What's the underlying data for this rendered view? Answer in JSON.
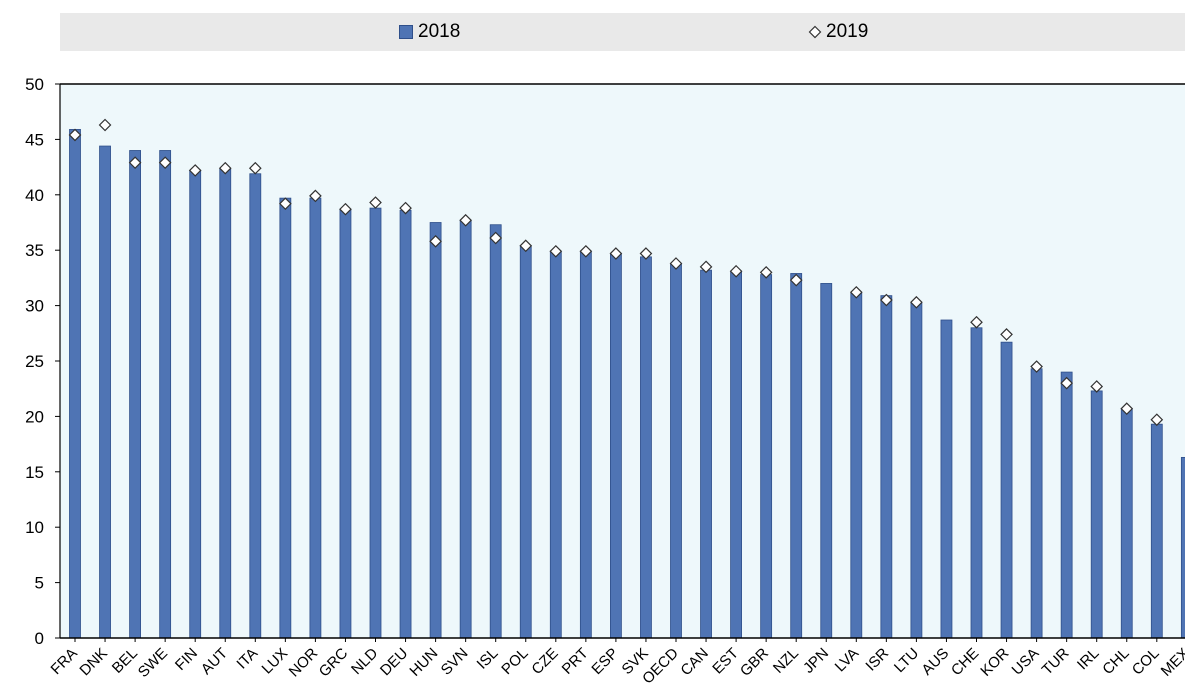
{
  "chart_data": {
    "type": "bar",
    "title": "",
    "xlabel": "",
    "ylabel": "",
    "ylim": [
      0,
      50
    ],
    "yticks": [
      "0",
      "5",
      "10",
      "15",
      "20",
      "25",
      "30",
      "35",
      "40",
      "45",
      "50"
    ],
    "legend_position": "top",
    "categories": [
      "FRA",
      "DNK",
      "BEL",
      "SWE",
      "FIN",
      "AUT",
      "ITA",
      "LUX",
      "NOR",
      "GRC",
      "NLD",
      "DEU",
      "HUN",
      "SVN",
      "ISL",
      "POL",
      "CZE",
      "PRT",
      "ESP",
      "SVK",
      "OECD",
      "CAN",
      "EST",
      "GBR",
      "NZL",
      "JPN",
      "LVA",
      "ISR",
      "LTU",
      "AUS",
      "CHE",
      "KOR",
      "USA",
      "TUR",
      "IRL",
      "CHL",
      "COL",
      "MEX"
    ],
    "series": [
      {
        "name": "2018",
        "mark": "bar",
        "color": "#4f74b4",
        "values": [
          45.9,
          44.4,
          44.0,
          44.0,
          42.2,
          42.3,
          41.9,
          39.7,
          39.7,
          38.7,
          38.8,
          38.6,
          37.5,
          37.7,
          37.3,
          35.4,
          34.9,
          34.9,
          34.7,
          34.4,
          33.8,
          33.2,
          33.1,
          32.8,
          32.9,
          32.0,
          31.1,
          30.9,
          30.2,
          28.7,
          28.0,
          26.7,
          24.3,
          24.0,
          22.3,
          20.7,
          19.3,
          16.3
        ]
      },
      {
        "name": "2019",
        "mark": "diamond",
        "color": "#ffffff",
        "values": [
          45.4,
          46.3,
          42.9,
          42.9,
          42.2,
          42.4,
          42.4,
          39.2,
          39.9,
          38.7,
          39.3,
          38.8,
          35.8,
          37.7,
          36.1,
          35.4,
          34.9,
          34.9,
          34.7,
          34.7,
          33.8,
          33.5,
          33.1,
          33.0,
          32.3,
          null,
          31.2,
          30.5,
          30.3,
          null,
          28.5,
          27.4,
          24.5,
          23.0,
          22.7,
          20.7,
          19.7,
          null
        ]
      }
    ]
  },
  "legend": {
    "label_2018": "2018",
    "label_2019": "2019"
  },
  "colors": {
    "bar_fill": "#4f74b4",
    "bar_edge": "#2f4f8a",
    "plot_bg": "#eef8fb",
    "legend_bg": "#e9e9e9"
  }
}
